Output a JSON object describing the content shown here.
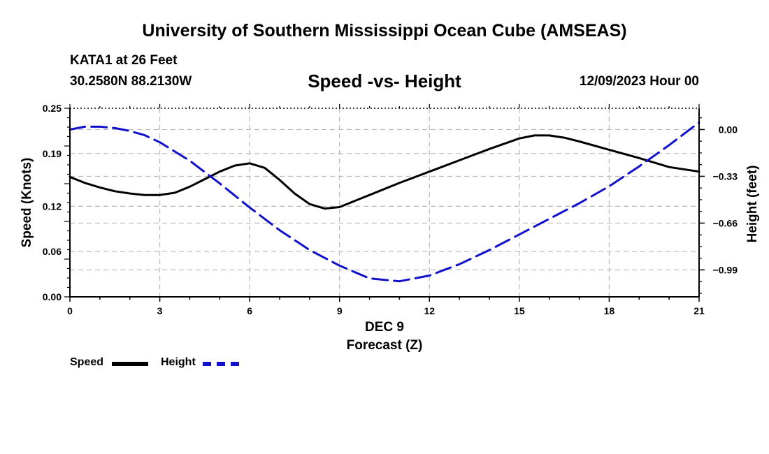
{
  "header": {
    "title": "University of Southern Mississippi Ocean Cube (AMSEAS)",
    "station": "KATA1 at 26 Feet",
    "coords": "30.2580N  88.2130W",
    "subtitle": "Speed -vs- Height",
    "datestamp": "12/09/2023 Hour 00"
  },
  "footer": {
    "title": "University of Southern Mississippi Ocean Cube (AMSEAS)"
  },
  "legend": {
    "speed_label": "Speed",
    "height_label": "Height"
  },
  "chart_data": {
    "type": "line",
    "title": "Speed -vs- Height",
    "xlabel": "Forecast (Z)",
    "xlabel_date": "DEC 9",
    "ylabel_left": "Speed (Knots)",
    "ylabel_right": "Height (feet)",
    "xlim": [
      0,
      21
    ],
    "x_ticks": [
      0,
      3,
      6,
      9,
      12,
      15,
      18,
      21
    ],
    "x_tick_labels": [
      "0",
      "3",
      "6",
      "9",
      "12",
      "15",
      "18",
      "21"
    ],
    "ylim_left": [
      0,
      0.25
    ],
    "y_left_ticks": [
      0.0,
      0.06,
      0.12,
      0.19,
      0.25
    ],
    "y_left_tick_labels": [
      "0.00",
      "0.06",
      "0.12",
      "0.19",
      "0.25"
    ],
    "ylim_right": [
      -1.18,
      0.15
    ],
    "y_right_ticks": [
      0.0,
      -0.33,
      -0.66,
      -0.99
    ],
    "y_right_tick_labels": [
      "0.00",
      "−0.33",
      "−0.66",
      "−0.99"
    ],
    "grid": true,
    "legend_position": "bottom-left",
    "series": [
      {
        "name": "Speed",
        "axis": "left",
        "color": "#000000",
        "style": "solid",
        "x": [
          0,
          0.5,
          1,
          1.5,
          2,
          2.5,
          3,
          3.5,
          4,
          4.5,
          5,
          5.5,
          6,
          6.5,
          7,
          7.5,
          8,
          8.5,
          9,
          9.5,
          10,
          11,
          12,
          13,
          14,
          15,
          15.5,
          16,
          16.5,
          17,
          18,
          19,
          20,
          21
        ],
        "values": [
          0.159,
          0.151,
          0.145,
          0.14,
          0.137,
          0.135,
          0.135,
          0.138,
          0.146,
          0.156,
          0.166,
          0.174,
          0.177,
          0.171,
          0.155,
          0.137,
          0.123,
          0.117,
          0.119,
          0.127,
          0.135,
          0.151,
          0.166,
          0.181,
          0.196,
          0.21,
          0.214,
          0.214,
          0.211,
          0.206,
          0.195,
          0.184,
          0.172,
          0.166
        ]
      },
      {
        "name": "Height",
        "axis": "right",
        "color": "#1111cc",
        "style": "dashed",
        "x": [
          0,
          0.5,
          1,
          1.5,
          2,
          2.5,
          3,
          4,
          5,
          6,
          7,
          8,
          9,
          10,
          11,
          12,
          13,
          14,
          15,
          16,
          17,
          18,
          19,
          20,
          21
        ],
        "values": [
          0.0,
          0.02,
          0.02,
          0.01,
          -0.01,
          -0.04,
          -0.09,
          -0.22,
          -0.38,
          -0.55,
          -0.71,
          -0.85,
          -0.96,
          -1.05,
          -1.07,
          -1.03,
          -0.95,
          -0.85,
          -0.74,
          -0.63,
          -0.52,
          -0.4,
          -0.26,
          -0.11,
          0.05
        ]
      }
    ]
  }
}
